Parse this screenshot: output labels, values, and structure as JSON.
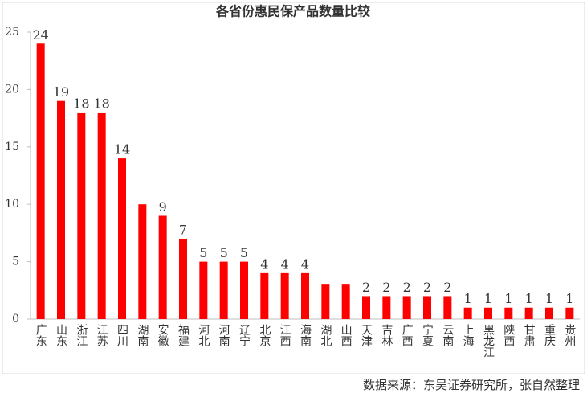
{
  "chart_data": {
    "type": "bar",
    "title": "各省份惠民保产品数量比较",
    "categories": [
      "广东",
      "山东",
      "浙江",
      "江苏",
      "四川",
      "湖南",
      "安徽",
      "福建",
      "河北",
      "河南",
      "辽宁",
      "北京",
      "江西",
      "海南",
      "湖北",
      "山西",
      "天津",
      "吉林",
      "广西",
      "宁夏",
      "云南",
      "上海",
      "黑龙江",
      "陕西",
      "甘肃",
      "重庆",
      "贵州"
    ],
    "values": [
      24,
      19,
      18,
      18,
      14,
      10,
      9,
      7,
      5,
      5,
      5,
      4,
      4,
      4,
      3,
      3,
      2,
      2,
      2,
      2,
      2,
      1,
      1,
      1,
      1,
      1,
      1
    ],
    "value_labels": [
      "24",
      "19",
      "18",
      "18",
      "14",
      null,
      "9",
      "7",
      "5",
      "5",
      "5",
      "4",
      "4",
      "4",
      null,
      null,
      "2",
      "2",
      "2",
      "2",
      "2",
      "1",
      "1",
      "1",
      "1",
      "1",
      "1"
    ],
    "color": "#ff0000",
    "ylim": [
      0,
      25
    ],
    "yticks": [
      0,
      5,
      10,
      15,
      20,
      25
    ],
    "grid": false,
    "source": "数据来源：东吴证券研究所，张自然整理"
  }
}
